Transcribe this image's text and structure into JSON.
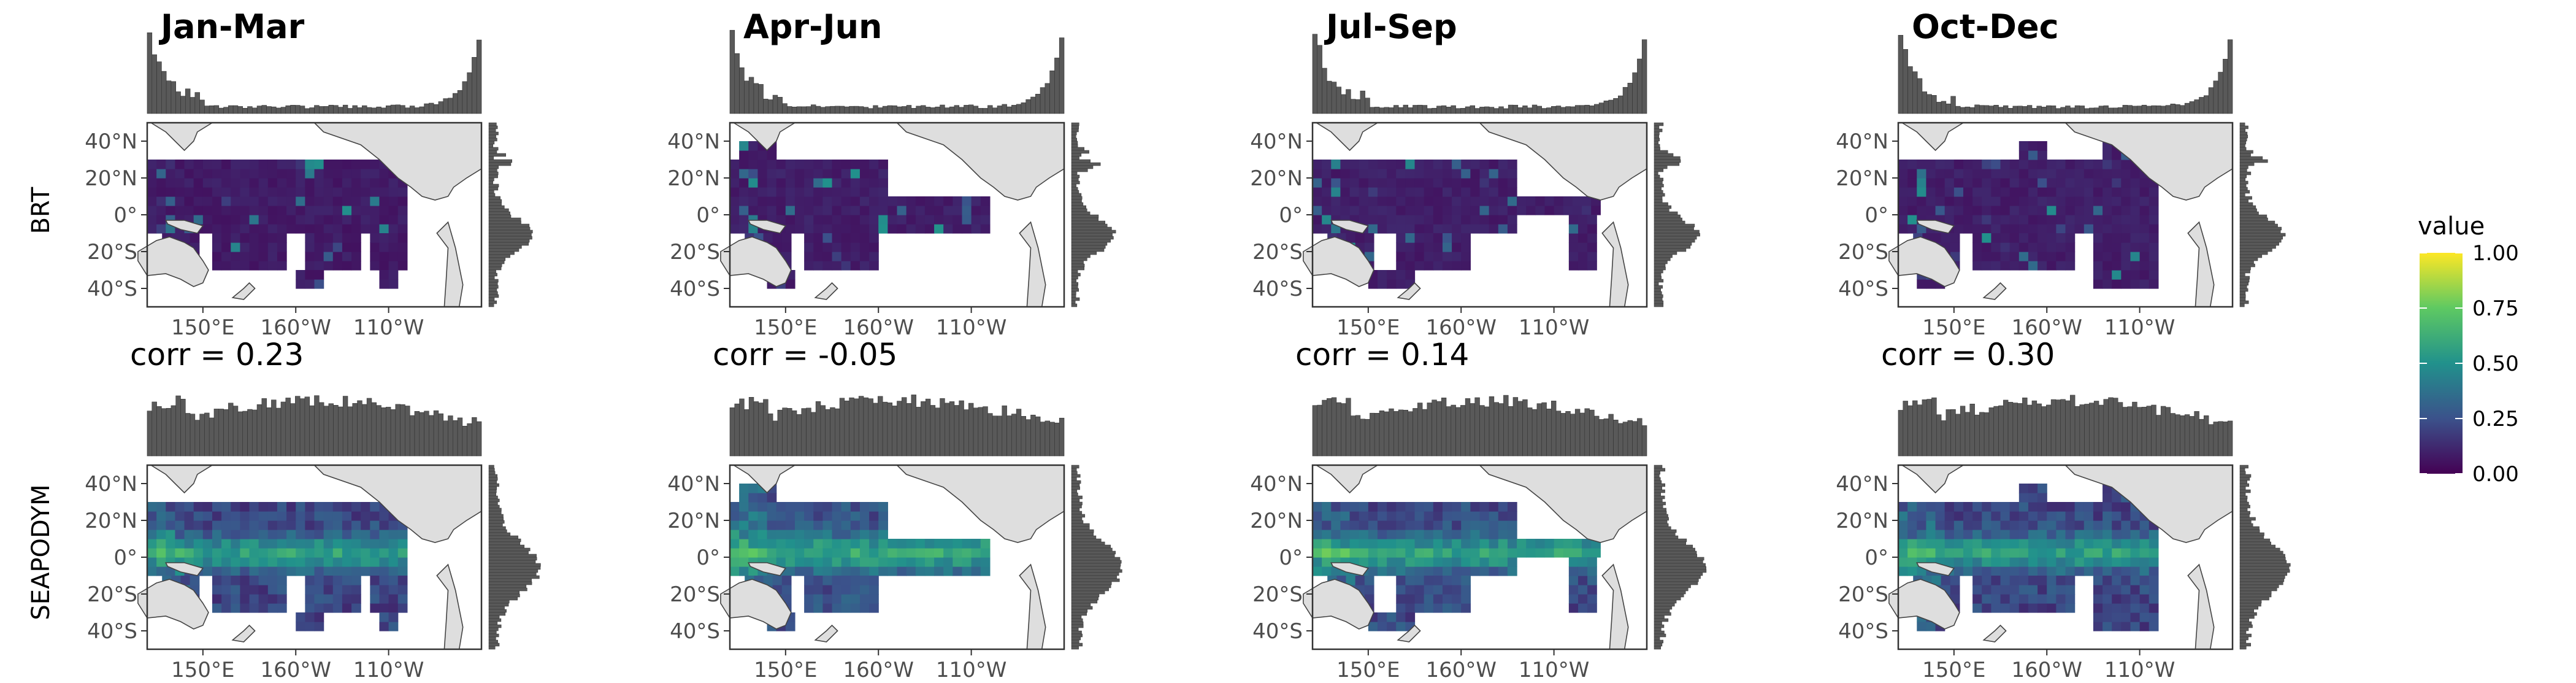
{
  "row_labels": [
    "BRT",
    "SEAPODYM"
  ],
  "legend": {
    "title": "value",
    "ticks": [
      "1.00",
      "0.75",
      "0.50",
      "0.25",
      "0.00"
    ],
    "colors": [
      "#440154",
      "#3b528b",
      "#21918c",
      "#5ec962",
      "#fde725"
    ]
  },
  "axis_ticks": {
    "lon": [
      "150°E",
      "160°W",
      "110°W"
    ],
    "lat": [
      "40°N",
      "20°N",
      "0°",
      "20°S",
      "40°S"
    ]
  },
  "chart_data": [
    {
      "type": "heatmap",
      "title": "Jan-Mar",
      "model": "BRT",
      "corr_label": "corr = 0.23",
      "mean_level": 0.05
    },
    {
      "type": "heatmap",
      "title": "Apr-Jun",
      "model": "BRT",
      "corr_label": "corr = -0.05",
      "mean_level": 0.06
    },
    {
      "type": "heatmap",
      "title": "Jul-Sep",
      "model": "BRT",
      "corr_label": "corr = 0.14",
      "mean_level": 0.06
    },
    {
      "type": "heatmap",
      "title": "Oct-Dec",
      "model": "BRT",
      "corr_label": "corr = 0.30",
      "mean_level": 0.06
    },
    {
      "type": "heatmap",
      "title": "",
      "model": "SEAPODYM",
      "corr_label": "",
      "mean_level": 0.35
    },
    {
      "type": "heatmap",
      "title": "",
      "model": "SEAPODYM",
      "corr_label": "",
      "mean_level": 0.42
    },
    {
      "type": "heatmap",
      "title": "",
      "model": "SEAPODYM",
      "corr_label": "",
      "mean_level": 0.38
    },
    {
      "type": "heatmap",
      "title": "",
      "model": "SEAPODYM",
      "corr_label": "",
      "mean_level": 0.36
    }
  ]
}
